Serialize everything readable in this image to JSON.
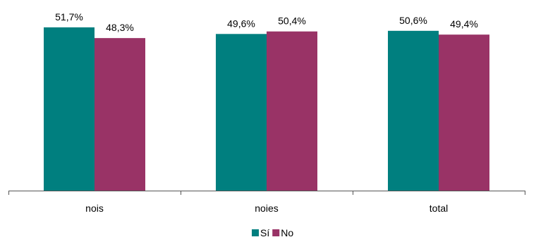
{
  "chart_data": {
    "type": "bar",
    "categories": [
      "nois",
      "noies",
      "total"
    ],
    "series": [
      {
        "name": "Sí",
        "values": [
          51.7,
          49.6,
          50.6
        ],
        "labels": [
          "51,7%",
          "49,6%",
          "50,6%"
        ],
        "color": "#007F7F"
      },
      {
        "name": "No",
        "values": [
          48.3,
          50.4,
          49.4
        ],
        "labels": [
          "48,3%",
          "50,4%",
          "49,4%"
        ],
        "color": "#993366"
      }
    ],
    "ylim": [
      0,
      60
    ],
    "grid": false,
    "legend": "bottom-center",
    "title": "",
    "xlabel": "",
    "ylabel": ""
  }
}
